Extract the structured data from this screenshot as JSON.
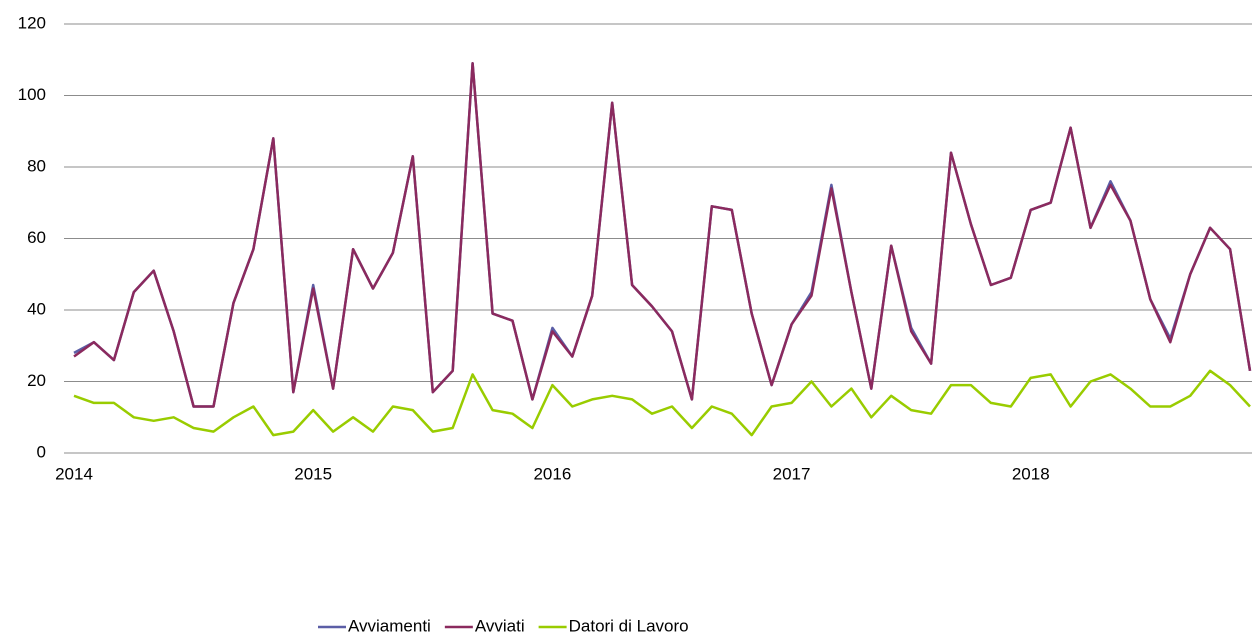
{
  "chart_data": {
    "type": "line",
    "categories": [
      "2014",
      null,
      null,
      null,
      null,
      null,
      null,
      null,
      null,
      null,
      null,
      null,
      "2015",
      null,
      null,
      null,
      null,
      null,
      null,
      null,
      null,
      null,
      null,
      null,
      "2016",
      null,
      null,
      null,
      null,
      null,
      null,
      null,
      null,
      null,
      null,
      null,
      "2017",
      null,
      null,
      null,
      null,
      null,
      null,
      null,
      null,
      null,
      null,
      null,
      "2018",
      null,
      null,
      null,
      null,
      null,
      null,
      null,
      null,
      null,
      null,
      null
    ],
    "series": [
      {
        "name": "Avviamenti",
        "color": "#5b5ea6",
        "values": [
          28,
          31,
          26,
          45,
          51,
          34,
          13,
          13,
          42,
          57,
          88,
          17,
          47,
          18,
          57,
          46,
          56,
          83,
          17,
          23,
          109,
          39,
          37,
          15,
          35,
          27,
          44,
          98,
          47,
          41,
          34,
          15,
          69,
          68,
          39,
          19,
          36,
          45,
          75,
          45,
          18,
          58,
          35,
          25,
          84,
          64,
          47,
          49,
          68,
          70,
          91,
          63,
          76,
          65,
          43,
          32,
          50,
          63,
          57,
          23
        ]
      },
      {
        "name": "Avviati",
        "color": "#8b2a5e",
        "values": [
          27,
          31,
          26,
          45,
          51,
          34,
          13,
          13,
          42,
          57,
          88,
          17,
          46,
          18,
          57,
          46,
          56,
          83,
          17,
          23,
          109,
          39,
          37,
          15,
          34,
          27,
          44,
          98,
          47,
          41,
          34,
          15,
          69,
          68,
          39,
          19,
          36,
          44,
          74,
          45,
          18,
          58,
          34,
          25,
          84,
          64,
          47,
          49,
          68,
          70,
          91,
          63,
          75,
          65,
          43,
          31,
          50,
          63,
          57,
          23
        ]
      },
      {
        "name": "Datori di Lavoro",
        "color": "#99cc00",
        "values": [
          16,
          14,
          14,
          10,
          9,
          10,
          7,
          6,
          10,
          13,
          5,
          6,
          12,
          6,
          10,
          6,
          13,
          12,
          6,
          7,
          22,
          12,
          11,
          7,
          19,
          13,
          15,
          16,
          15,
          11,
          13,
          7,
          13,
          11,
          5,
          13,
          14,
          20,
          13,
          18,
          10,
          16,
          12,
          11,
          19,
          19,
          14,
          13,
          21,
          22,
          13,
          20,
          22,
          18,
          13,
          13,
          16,
          23,
          19,
          13
        ]
      }
    ],
    "ylim": [
      0,
      120
    ],
    "yticks": [
      0,
      20,
      40,
      60,
      80,
      100,
      120
    ],
    "grid": true,
    "legend": "bottom"
  }
}
